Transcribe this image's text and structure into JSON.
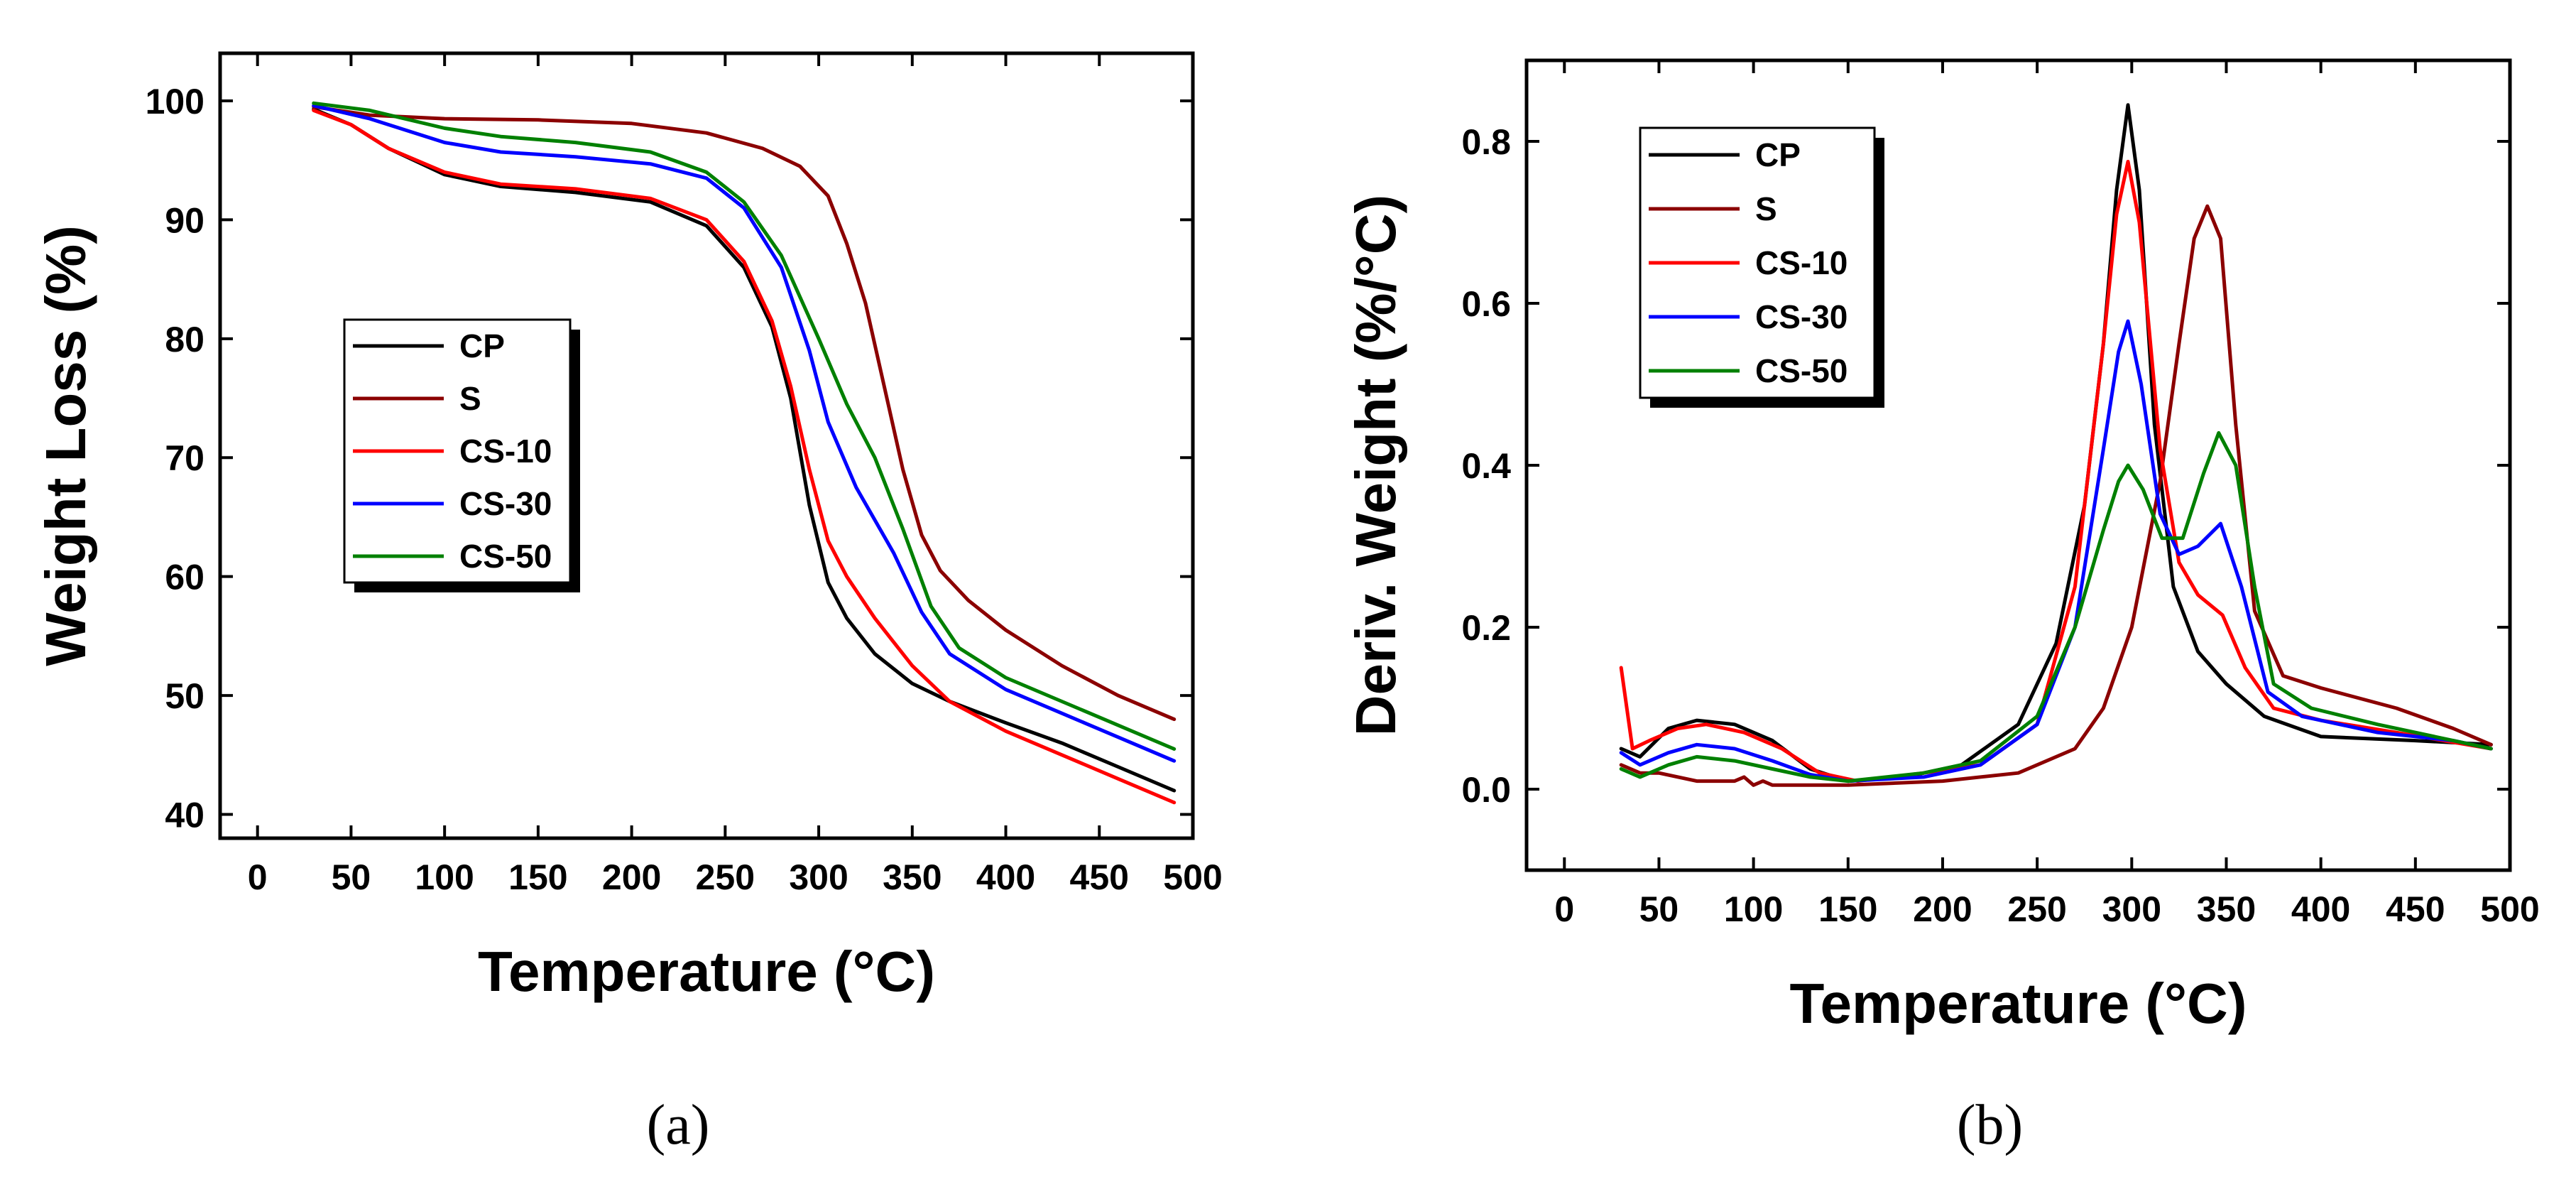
{
  "chart_data": [
    {
      "type": "line",
      "panel_label": "(a)",
      "xlabel": "Temperature (°C)",
      "ylabel": "Weight Loss (%)",
      "xlim": [
        -20,
        500
      ],
      "ylim": [
        38,
        104
      ],
      "xticks": [
        0,
        50,
        100,
        150,
        200,
        250,
        300,
        350,
        400,
        450,
        500
      ],
      "yticks": [
        40,
        50,
        60,
        70,
        80,
        90,
        100
      ],
      "legend_position": "middle-left",
      "series": [
        {
          "name": "CP",
          "color": "#000000",
          "points": [
            [
              30,
              99.3
            ],
            [
              50,
              98
            ],
            [
              70,
              96
            ],
            [
              100,
              93.8
            ],
            [
              130,
              92.8
            ],
            [
              170,
              92.3
            ],
            [
              210,
              91.5
            ],
            [
              240,
              89.5
            ],
            [
              260,
              86
            ],
            [
              275,
              81
            ],
            [
              285,
              75
            ],
            [
              295,
              66
            ],
            [
              305,
              59.5
            ],
            [
              315,
              56.5
            ],
            [
              330,
              53.5
            ],
            [
              350,
              51
            ],
            [
              370,
              49.5
            ],
            [
              400,
              47.7
            ],
            [
              430,
              46
            ],
            [
              460,
              44
            ],
            [
              490,
              42
            ]
          ]
        },
        {
          "name": "S",
          "color": "#8B0000",
          "points": [
            [
              30,
              99.5
            ],
            [
              60,
              98.8
            ],
            [
              100,
              98.5
            ],
            [
              150,
              98.4
            ],
            [
              200,
              98.1
            ],
            [
              240,
              97.3
            ],
            [
              270,
              96
            ],
            [
              290,
              94.5
            ],
            [
              305,
              92
            ],
            [
              315,
              88
            ],
            [
              325,
              83
            ],
            [
              335,
              76
            ],
            [
              345,
              69
            ],
            [
              355,
              63.5
            ],
            [
              365,
              60.5
            ],
            [
              380,
              58
            ],
            [
              400,
              55.5
            ],
            [
              430,
              52.5
            ],
            [
              460,
              50
            ],
            [
              490,
              48
            ]
          ]
        },
        {
          "name": "CS-10",
          "color": "#FF0000",
          "points": [
            [
              30,
              99.2
            ],
            [
              50,
              98
            ],
            [
              70,
              96
            ],
            [
              100,
              94
            ],
            [
              130,
              93
            ],
            [
              170,
              92.6
            ],
            [
              210,
              91.8
            ],
            [
              240,
              90
            ],
            [
              260,
              86.5
            ],
            [
              275,
              81.5
            ],
            [
              285,
              76
            ],
            [
              295,
              69
            ],
            [
              305,
              63
            ],
            [
              315,
              60
            ],
            [
              330,
              56.5
            ],
            [
              350,
              52.5
            ],
            [
              370,
              49.5
            ],
            [
              400,
              47
            ],
            [
              430,
              45
            ],
            [
              460,
              43
            ],
            [
              490,
              41
            ]
          ]
        },
        {
          "name": "CS-30",
          "color": "#0000FF",
          "points": [
            [
              30,
              99.6
            ],
            [
              60,
              98.5
            ],
            [
              100,
              96.5
            ],
            [
              130,
              95.7
            ],
            [
              170,
              95.3
            ],
            [
              210,
              94.7
            ],
            [
              240,
              93.5
            ],
            [
              260,
              91
            ],
            [
              280,
              86
            ],
            [
              295,
              79
            ],
            [
              305,
              73
            ],
            [
              320,
              67.5
            ],
            [
              340,
              62
            ],
            [
              355,
              57
            ],
            [
              370,
              53.5
            ],
            [
              400,
              50.5
            ],
            [
              430,
              48.5
            ],
            [
              460,
              46.5
            ],
            [
              490,
              44.5
            ]
          ]
        },
        {
          "name": "CS-50",
          "color": "#008000",
          "points": [
            [
              30,
              99.8
            ],
            [
              60,
              99.2
            ],
            [
              100,
              97.7
            ],
            [
              130,
              97
            ],
            [
              170,
              96.5
            ],
            [
              210,
              95.7
            ],
            [
              240,
              94
            ],
            [
              260,
              91.5
            ],
            [
              280,
              87
            ],
            [
              300,
              80
            ],
            [
              315,
              74.5
            ],
            [
              330,
              70
            ],
            [
              345,
              64
            ],
            [
              360,
              57.5
            ],
            [
              375,
              54
            ],
            [
              400,
              51.5
            ],
            [
              430,
              49.5
            ],
            [
              460,
              47.5
            ],
            [
              490,
              45.5
            ]
          ]
        }
      ]
    },
    {
      "type": "line",
      "panel_label": "(b)",
      "xlabel": "Temperature (°C)",
      "ylabel": "Deriv. Weight (%/°C)",
      "xlim": [
        -20,
        500
      ],
      "ylim": [
        -0.1,
        0.9
      ],
      "xticks": [
        0,
        50,
        100,
        150,
        200,
        250,
        300,
        350,
        400,
        450,
        500
      ],
      "yticks": [
        0.0,
        0.2,
        0.4,
        0.6,
        0.8
      ],
      "legend_position": "top-left",
      "series": [
        {
          "name": "CP",
          "color": "#000000",
          "points": [
            [
              30,
              0.05
            ],
            [
              40,
              0.04
            ],
            [
              55,
              0.075
            ],
            [
              70,
              0.085
            ],
            [
              90,
              0.08
            ],
            [
              110,
              0.06
            ],
            [
              130,
              0.025
            ],
            [
              150,
              0.01
            ],
            [
              180,
              0.015
            ],
            [
              210,
              0.03
            ],
            [
              240,
              0.08
            ],
            [
              260,
              0.18
            ],
            [
              275,
              0.35
            ],
            [
              285,
              0.55
            ],
            [
              292,
              0.74
            ],
            [
              298,
              0.845
            ],
            [
              304,
              0.74
            ],
            [
              312,
              0.45
            ],
            [
              322,
              0.25
            ],
            [
              335,
              0.17
            ],
            [
              350,
              0.13
            ],
            [
              370,
              0.09
            ],
            [
              400,
              0.065
            ],
            [
              450,
              0.06
            ],
            [
              490,
              0.055
            ]
          ]
        },
        {
          "name": "S",
          "color": "#8B0000",
          "points": [
            [
              30,
              0.03
            ],
            [
              40,
              0.02
            ],
            [
              50,
              0.02
            ],
            [
              70,
              0.01
            ],
            [
              90,
              0.01
            ],
            [
              95,
              0.015
            ],
            [
              100,
              0.005
            ],
            [
              105,
              0.01
            ],
            [
              110,
              0.005
            ],
            [
              150,
              0.005
            ],
            [
              200,
              0.01
            ],
            [
              240,
              0.02
            ],
            [
              270,
              0.05
            ],
            [
              285,
              0.1
            ],
            [
              300,
              0.2
            ],
            [
              315,
              0.38
            ],
            [
              325,
              0.55
            ],
            [
              333,
              0.68
            ],
            [
              340,
              0.72
            ],
            [
              347,
              0.68
            ],
            [
              355,
              0.45
            ],
            [
              365,
              0.22
            ],
            [
              380,
              0.14
            ],
            [
              400,
              0.125
            ],
            [
              440,
              0.1
            ],
            [
              470,
              0.075
            ],
            [
              490,
              0.055
            ]
          ]
        },
        {
          "name": "CS-10",
          "color": "#FF0000",
          "points": [
            [
              30,
              0.15
            ],
            [
              33,
              0.1
            ],
            [
              36,
              0.05
            ],
            [
              45,
              0.06
            ],
            [
              60,
              0.075
            ],
            [
              75,
              0.08
            ],
            [
              95,
              0.07
            ],
            [
              115,
              0.05
            ],
            [
              135,
              0.02
            ],
            [
              155,
              0.01
            ],
            [
              190,
              0.02
            ],
            [
              220,
              0.03
            ],
            [
              250,
              0.08
            ],
            [
              270,
              0.25
            ],
            [
              285,
              0.55
            ],
            [
              292,
              0.71
            ],
            [
              298,
              0.775
            ],
            [
              304,
              0.7
            ],
            [
              315,
              0.42
            ],
            [
              325,
              0.28
            ],
            [
              335,
              0.24
            ],
            [
              348,
              0.215
            ],
            [
              360,
              0.15
            ],
            [
              375,
              0.1
            ],
            [
              400,
              0.085
            ],
            [
              440,
              0.07
            ],
            [
              490,
              0.05
            ]
          ]
        },
        {
          "name": "CS-30",
          "color": "#0000FF",
          "points": [
            [
              30,
              0.045
            ],
            [
              40,
              0.03
            ],
            [
              55,
              0.045
            ],
            [
              70,
              0.055
            ],
            [
              90,
              0.05
            ],
            [
              110,
              0.035
            ],
            [
              130,
              0.018
            ],
            [
              150,
              0.01
            ],
            [
              190,
              0.015
            ],
            [
              220,
              0.03
            ],
            [
              250,
              0.08
            ],
            [
              270,
              0.2
            ],
            [
              285,
              0.42
            ],
            [
              293,
              0.54
            ],
            [
              298,
              0.578
            ],
            [
              305,
              0.5
            ],
            [
              315,
              0.34
            ],
            [
              325,
              0.29
            ],
            [
              335,
              0.3
            ],
            [
              347,
              0.328
            ],
            [
              358,
              0.25
            ],
            [
              372,
              0.12
            ],
            [
              390,
              0.09
            ],
            [
              430,
              0.07
            ],
            [
              470,
              0.06
            ],
            [
              490,
              0.05
            ]
          ]
        },
        {
          "name": "CS-50",
          "color": "#008000",
          "points": [
            [
              30,
              0.025
            ],
            [
              40,
              0.015
            ],
            [
              55,
              0.03
            ],
            [
              70,
              0.04
            ],
            [
              90,
              0.035
            ],
            [
              110,
              0.025
            ],
            [
              130,
              0.015
            ],
            [
              150,
              0.01
            ],
            [
              190,
              0.02
            ],
            [
              220,
              0.035
            ],
            [
              250,
              0.09
            ],
            [
              270,
              0.2
            ],
            [
              285,
              0.32
            ],
            [
              293,
              0.38
            ],
            [
              298,
              0.4
            ],
            [
              306,
              0.37
            ],
            [
              316,
              0.31
            ],
            [
              327,
              0.31
            ],
            [
              338,
              0.39
            ],
            [
              346,
              0.44
            ],
            [
              355,
              0.4
            ],
            [
              365,
              0.25
            ],
            [
              375,
              0.13
            ],
            [
              395,
              0.1
            ],
            [
              430,
              0.08
            ],
            [
              470,
              0.06
            ],
            [
              490,
              0.05
            ]
          ]
        }
      ]
    }
  ]
}
